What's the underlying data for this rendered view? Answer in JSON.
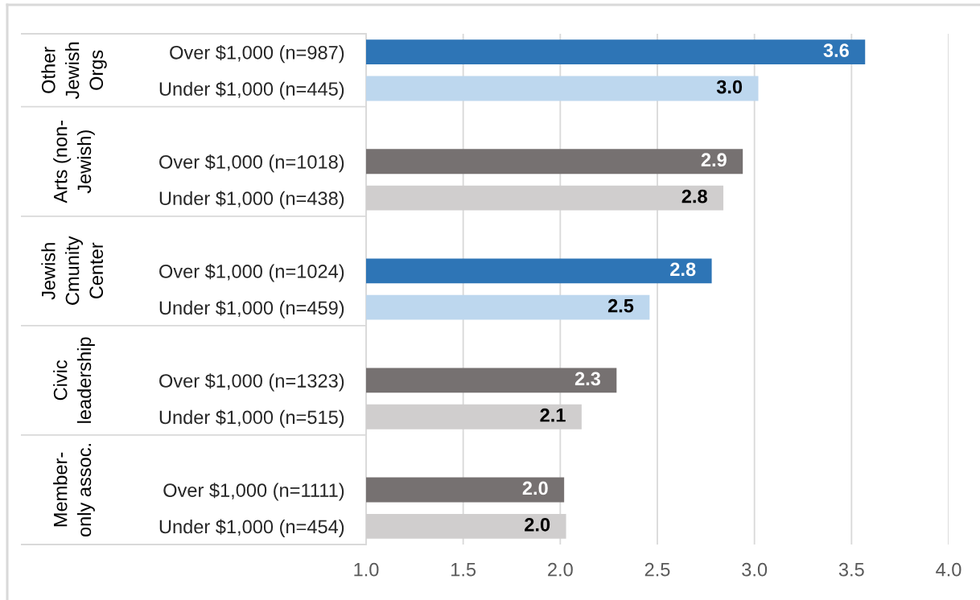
{
  "chart_data": {
    "type": "bar",
    "orientation": "horizontal",
    "categories": [
      "Over $1,000 (n=987)",
      "Under $1,000 (n=445)",
      null,
      "Over $1,000 (n=1018)",
      "Under $1,000 (n=438)",
      null,
      "Over $1,000 (n=1024)",
      "Under $1,000 (n=459)",
      null,
      "Over $1,000 (n=1323)",
      "Under $1,000 (n=515)",
      null,
      "Over $1,000 (n=1111)",
      "Under $1,000 (n=454)"
    ],
    "values": [
      3.57,
      3.02,
      null,
      2.94,
      2.84,
      null,
      2.78,
      2.46,
      null,
      2.29,
      2.11,
      null,
      2.02,
      2.03
    ],
    "colors": [
      "#2e75b6",
      "#bdd7ee",
      null,
      "#767171",
      "#d0cece",
      null,
      "#2e75b6",
      "#bdd7ee",
      null,
      "#767171",
      "#d0cece",
      null,
      "#767171",
      "#d0cece"
    ],
    "value_labels": [
      "3.6",
      "3.0",
      null,
      "2.9",
      "2.8",
      null,
      "2.8",
      "2.5",
      null,
      "2.3",
      "2.1",
      null,
      "2.0",
      "2.0"
    ],
    "xlim": [
      1,
      4
    ],
    "xticks": [
      {
        "value": 1,
        "label": "1.0"
      },
      {
        "value": 1.5,
        "label": "1.5"
      },
      {
        "value": 2,
        "label": "2.0"
      },
      {
        "value": 2.5,
        "label": "2.5"
      },
      {
        "value": 3,
        "label": "3.0"
      },
      {
        "value": 3.5,
        "label": "3.5"
      },
      {
        "value": 4,
        "label": "4.0"
      }
    ],
    "grid": "x",
    "annotations": [
      "Other\nJewish\nOrgs",
      "Arts (non-\nJewish)",
      "Jewish\nCmunity\nCenter",
      "Civic\nleadership",
      "Member-\nonly assoc."
    ]
  }
}
